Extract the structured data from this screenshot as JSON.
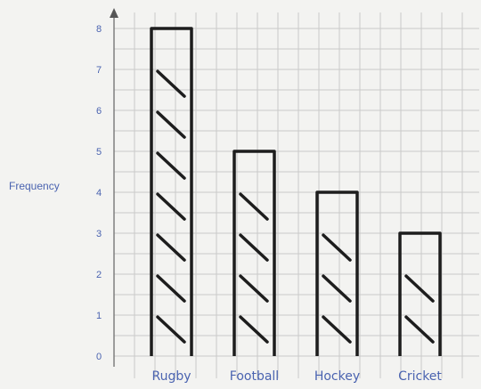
{
  "chart_data": {
    "type": "bar",
    "title": "",
    "xlabel": "",
    "ylabel": "Frequency",
    "categories": [
      "Rugby",
      "Football",
      "Hockey",
      "Cricket"
    ],
    "values": [
      8,
      5,
      4,
      3
    ],
    "ylim": [
      0,
      8
    ],
    "yticks": [
      "0",
      "1",
      "2",
      "3",
      "4",
      "5",
      "6",
      "7",
      "8"
    ],
    "grid": true,
    "colors": {
      "bars": "#1d1d1d",
      "labels": "#4a63b0",
      "grid": "#c9c9c9"
    }
  }
}
